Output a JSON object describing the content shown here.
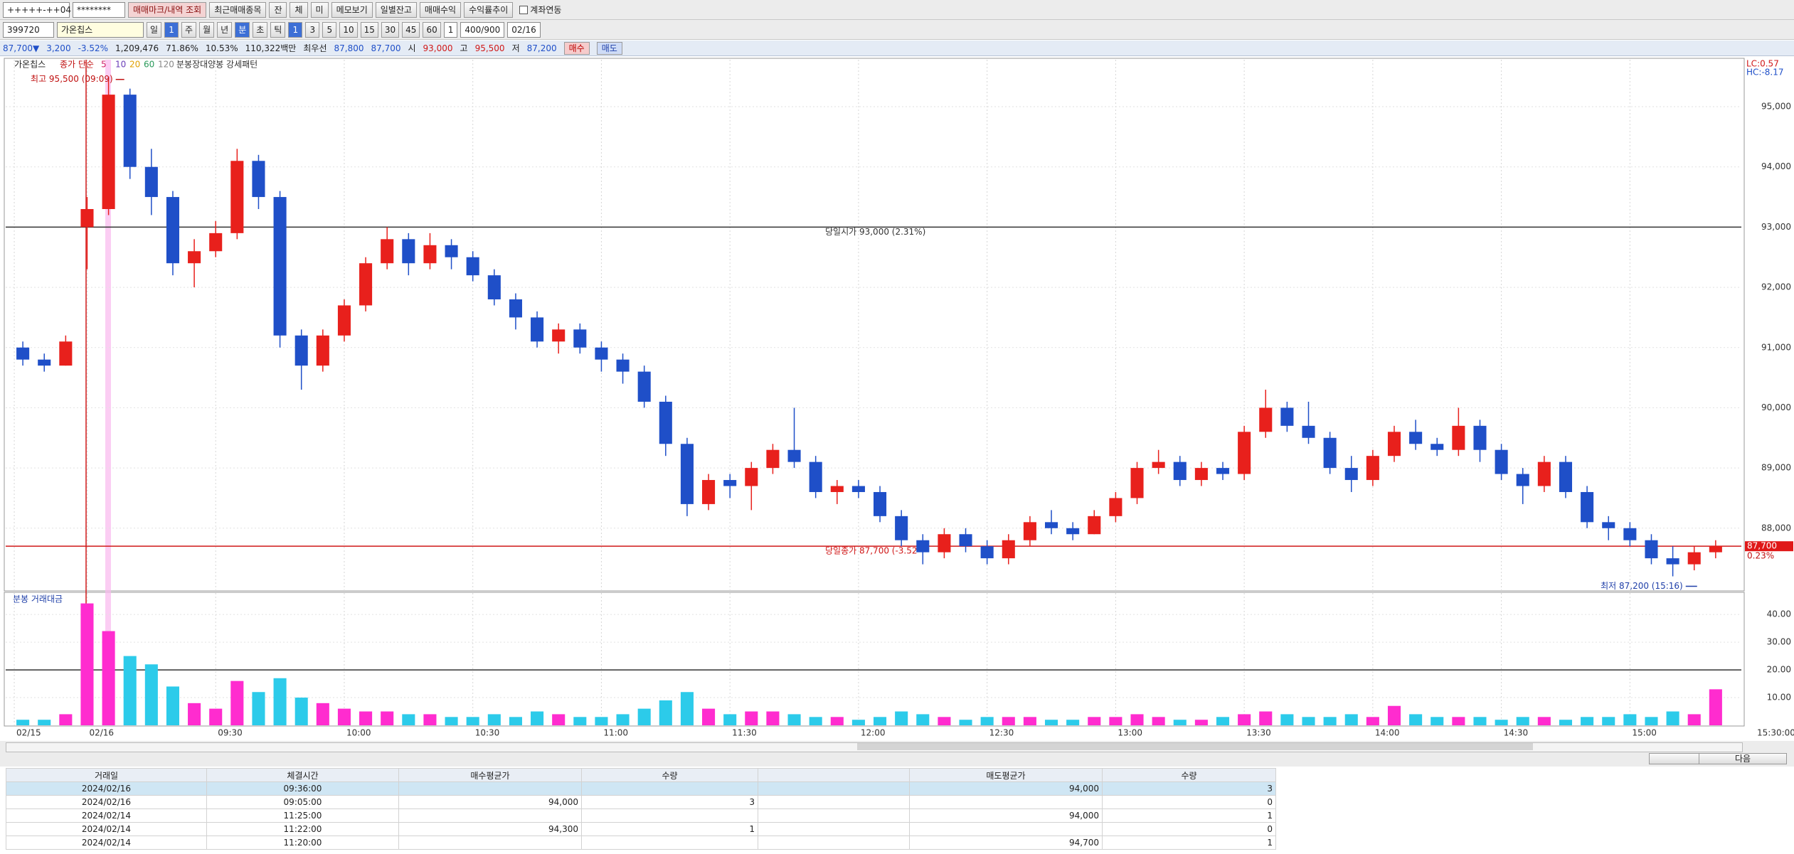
{
  "toolbar": {
    "account": "+++++-++04",
    "password": "********",
    "buttons": [
      "매매마크/내역 조회",
      "최근매매종목",
      "잔",
      "체",
      "미",
      "메모보기",
      "일별잔고",
      "매매수익",
      "수익률추이"
    ],
    "link_label": "계좌연동"
  },
  "symbol_bar": {
    "code": "399720",
    "name": "가온칩스",
    "periods": [
      "일",
      "1",
      "주",
      "월",
      "년",
      "분",
      "초",
      "틱"
    ],
    "intervals": [
      "1",
      "3",
      "5",
      "10",
      "15",
      "30",
      "45",
      "60"
    ],
    "multiplier": "1",
    "count": "400/900",
    "date": "02/16"
  },
  "info_bar": {
    "price": "87,700▼",
    "change": "3,200",
    "change_rate": "-3.52%",
    "volume": "1,209,476",
    "turnover_rate": "71.86%",
    "ratio": "10.53%",
    "amount": "110,322백만",
    "best_label": "최우선",
    "best_ask": "87,800",
    "best_bid": "87,700",
    "open_label": "시",
    "open": "93,000",
    "high_label": "고",
    "high": "95,500",
    "low_label": "저",
    "low": "87,200",
    "buy": "매수",
    "sell": "매도"
  },
  "chart_data": {
    "type": "candlestick",
    "name": "가온칩스",
    "ma_label": "종가 단순",
    "ma_periods": [
      "5",
      "10",
      "20",
      "60",
      "120"
    ],
    "ma_colors": [
      "#d0206a",
      "#6a3db8",
      "#e0a000",
      "#2a9a5a",
      "#888888"
    ],
    "pattern_label": "분봉장대양봉 강세패턴",
    "volume_title": "분봉 거래대금",
    "lc": "LC:0.57",
    "hc": "HC:-8.17",
    "up_color": "#e8201c",
    "down_color": "#1f4fc8",
    "volume_up_color": "#ff2ccf",
    "volume_down_color": "#2ccbea",
    "x": [
      -15,
      -10,
      -5,
      0,
      5,
      10,
      15,
      20,
      25,
      30,
      35,
      40,
      45,
      50,
      55,
      60,
      65,
      70,
      75,
      80,
      85,
      90,
      95,
      100,
      105,
      110,
      115,
      120,
      125,
      130,
      135,
      140,
      145,
      150,
      155,
      160,
      165,
      170,
      175,
      180,
      185,
      190,
      195,
      200,
      205,
      210,
      215,
      220,
      225,
      230,
      235,
      240,
      245,
      250,
      255,
      260,
      265,
      270,
      275,
      280,
      285,
      290,
      295,
      300,
      305,
      310,
      315,
      320,
      325,
      330,
      335,
      340,
      345,
      350,
      355,
      360,
      365,
      370,
      375,
      380
    ],
    "open": [
      91000,
      90800,
      90700,
      93000,
      93300,
      95200,
      94000,
      93500,
      92400,
      92600,
      92900,
      94100,
      93500,
      91200,
      90700,
      91200,
      91700,
      92400,
      92800,
      92400,
      92700,
      92500,
      92200,
      91800,
      91500,
      91100,
      91300,
      91000,
      90800,
      90600,
      90100,
      89400,
      88400,
      88800,
      88700,
      89000,
      89300,
      89100,
      88600,
      88700,
      88600,
      88200,
      87800,
      87600,
      87900,
      87700,
      87500,
      87800,
      88100,
      88000,
      87900,
      88200,
      88500,
      89000,
      89100,
      88800,
      89000,
      88900,
      89600,
      90000,
      89700,
      89500,
      89000,
      88800,
      89200,
      89600,
      89400,
      89300,
      89700,
      89300,
      88900,
      88700,
      89100,
      88600,
      88100,
      88000,
      87800,
      87500,
      87400,
      87600
    ],
    "high": [
      91100,
      90900,
      91200,
      93500,
      95500,
      95300,
      94300,
      93600,
      92800,
      93100,
      94300,
      94200,
      93600,
      91300,
      91300,
      91800,
      92500,
      93000,
      92900,
      92900,
      92800,
      92600,
      92300,
      91900,
      91600,
      91400,
      91400,
      91100,
      90900,
      90700,
      90200,
      89500,
      88900,
      88900,
      89100,
      89400,
      90000,
      89200,
      88800,
      88800,
      88700,
      88300,
      87900,
      88000,
      88000,
      87800,
      87900,
      88200,
      88300,
      88100,
      88300,
      88600,
      89100,
      89300,
      89200,
      89100,
      89100,
      89700,
      90300,
      90100,
      90100,
      89600,
      89200,
      89300,
      89700,
      89800,
      89500,
      90000,
      89800,
      89400,
      89000,
      89200,
      89200,
      88700,
      88200,
      88100,
      87900,
      87700,
      87700,
      87800
    ],
    "low": [
      90700,
      90600,
      90700,
      92300,
      93200,
      93800,
      93200,
      92200,
      92000,
      92500,
      92800,
      93300,
      91000,
      90300,
      90600,
      91100,
      91600,
      92300,
      92200,
      92300,
      92300,
      92100,
      91700,
      91300,
      91000,
      90900,
      90900,
      90600,
      90400,
      90000,
      89200,
      88200,
      88300,
      88500,
      88300,
      88900,
      89000,
      88500,
      88400,
      88500,
      88100,
      87700,
      87400,
      87500,
      87600,
      87400,
      87400,
      87700,
      87900,
      87800,
      87900,
      88100,
      88400,
      88900,
      88700,
      88700,
      88800,
      88800,
      89500,
      89600,
      89400,
      88900,
      88600,
      88700,
      89100,
      89300,
      89200,
      89200,
      89100,
      88800,
      88400,
      88600,
      88500,
      88000,
      87800,
      87700,
      87400,
      87200,
      87300,
      87500
    ],
    "close": [
      90800,
      90700,
      91100,
      93300,
      95200,
      94000,
      93500,
      92400,
      92600,
      92900,
      94100,
      93500,
      91200,
      90700,
      91200,
      91700,
      92400,
      92800,
      92400,
      92700,
      92500,
      92200,
      91800,
      91500,
      91100,
      91300,
      91000,
      90800,
      90600,
      90100,
      89400,
      88400,
      88800,
      88700,
      89000,
      89300,
      89100,
      88600,
      88700,
      88600,
      88200,
      87800,
      87600,
      87900,
      87700,
      87500,
      87800,
      88100,
      88000,
      87900,
      88200,
      88500,
      89000,
      89100,
      88800,
      89000,
      88900,
      89600,
      90000,
      89700,
      89500,
      89000,
      88800,
      89200,
      89600,
      89400,
      89300,
      89700,
      89300,
      88900,
      88700,
      89100,
      88600,
      88100,
      88000,
      87800,
      87500,
      87400,
      87600,
      87700
    ],
    "volume": [
      2,
      2,
      4,
      44,
      34,
      25,
      22,
      14,
      8,
      6,
      16,
      12,
      17,
      10,
      8,
      6,
      5,
      5,
      4,
      4,
      3,
      3,
      4,
      3,
      5,
      4,
      3,
      3,
      4,
      6,
      9,
      12,
      6,
      4,
      5,
      5,
      4,
      3,
      3,
      2,
      3,
      5,
      4,
      3,
      2,
      3,
      3,
      3,
      2,
      2,
      3,
      3,
      4,
      3,
      2,
      2,
      3,
      4,
      5,
      4,
      3,
      3,
      4,
      3,
      7,
      4,
      3,
      3,
      3,
      2,
      3,
      3,
      2,
      3,
      3,
      4,
      3,
      5,
      4,
      13
    ],
    "xlim": [
      -19,
      386
    ],
    "ylim": [
      86970,
      95780
    ],
    "volume_ylim": [
      0,
      48
    ],
    "xticks": [
      {
        "value": -17,
        "label": "02/15"
      },
      {
        "value": 0,
        "label": "02/16"
      },
      {
        "value": 30,
        "label": "09:30"
      },
      {
        "value": 60,
        "label": "10:00"
      },
      {
        "value": 90,
        "label": "10:30"
      },
      {
        "value": 120,
        "label": "11:00"
      },
      {
        "value": 150,
        "label": "11:30"
      },
      {
        "value": 180,
        "label": "12:00"
      },
      {
        "value": 210,
        "label": "12:30"
      },
      {
        "value": 240,
        "label": "13:00"
      },
      {
        "value": 270,
        "label": "13:30"
      },
      {
        "value": 300,
        "label": "14:00"
      },
      {
        "value": 330,
        "label": "14:30"
      },
      {
        "value": 360,
        "label": "15:00"
      },
      {
        "value": 390,
        "label": "15:30:00"
      }
    ],
    "yticks": [
      {
        "value": 88000,
        "label": "88,000"
      },
      {
        "value": 89000,
        "label": "89,000"
      },
      {
        "value": 90000,
        "label": "90,000"
      },
      {
        "value": 91000,
        "label": "91,000"
      },
      {
        "value": 92000,
        "label": "92,000"
      },
      {
        "value": 93000,
        "label": "93,000"
      },
      {
        "value": 94000,
        "label": "94,000"
      },
      {
        "value": 95000,
        "label": "95,000"
      }
    ],
    "volume_yticks": [
      {
        "value": 10,
        "label": "10.00"
      },
      {
        "value": 20,
        "label": "20.00"
      },
      {
        "value": 30,
        "label": "30.00"
      },
      {
        "value": 40,
        "label": "40.00"
      }
    ],
    "reference_lines": [
      {
        "value": 93000,
        "label": "당일시가 93,000 (2.31%)",
        "color": "#333333"
      },
      {
        "value": 87700,
        "label": "당일종가 87,700 (-3.52",
        "color": "#d01818"
      }
    ],
    "volume_reference": 20,
    "high_annotation": {
      "x": 9,
      "value": 95500,
      "label": "최고 95,500 (09:09)"
    },
    "low_annotation": {
      "x": 376,
      "value": 87200,
      "label": "최저 87,200 (15:16)"
    },
    "price_tag": {
      "value": 87700,
      "label": "87,700",
      "change": "0.23%"
    }
  },
  "table": {
    "columns": [
      "거래일",
      "체결시간",
      "매수평균가",
      "수량",
      null,
      "매도평균가",
      "수량"
    ],
    "rows": [
      [
        "2024/02/16",
        "09:36:00",
        null,
        null,
        null,
        "94,000",
        "3"
      ],
      [
        "2024/02/16",
        "09:05:00",
        "94,000",
        "3",
        null,
        null,
        "0"
      ],
      [
        "2024/02/14",
        "11:25:00",
        null,
        null,
        null,
        "94,000",
        "1"
      ],
      [
        "2024/02/14",
        "11:22:00",
        "94,300",
        "1",
        null,
        null,
        "0"
      ],
      [
        "2024/02/14",
        "11:20:00",
        null,
        null,
        null,
        "94,700",
        "1"
      ]
    ]
  },
  "nav": {
    "next": "다음"
  }
}
